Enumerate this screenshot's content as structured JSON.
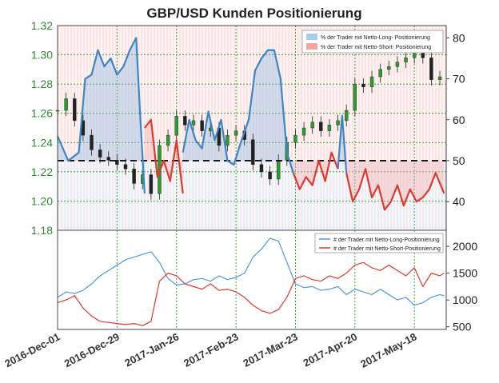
{
  "chart_data": [
    {
      "type": "line",
      "title": "GBP/USD Kunden Positionierung",
      "left_axis": {
        "ticks": [
          1.18,
          1.2,
          1.22,
          1.24,
          1.26,
          1.28,
          1.3,
          1.32
        ],
        "range": [
          1.18,
          1.32
        ],
        "tick_color": "#2e8b2e"
      },
      "right_axis": {
        "ticks": [
          40,
          50,
          60,
          70,
          80
        ],
        "range": [
          33,
          83
        ]
      },
      "reference_line": 50,
      "grid": true,
      "legend_position": "top-right",
      "x_dates": [
        "2016-12-01",
        "2016-12-29",
        "2017-01-26",
        "2017-02-23",
        "2017-03-23",
        "2017-04-20",
        "2017-05-18"
      ],
      "x_labels": [
        "2016-Dec-01",
        "2016-Dec-29",
        "2017-Jan-26",
        "2017-Feb-23",
        "2017-Mar-23",
        "2017-Apr-20",
        "2017-May-18"
      ],
      "x_range": [
        "2016-12-01",
        "2017-06-02"
      ],
      "legend": [
        {
          "label": "% der Trader mit Netto-Long- Positionierung",
          "color": "#a9cdec"
        },
        {
          "label": "% der Trader mit Netto-Short- Positionierung",
          "color": "#f5a3a3"
        }
      ],
      "long_series": {
        "color": "#3d85c6",
        "x": [
          "2016-12-01",
          "2016-12-06",
          "2016-12-11",
          "2016-12-14",
          "2016-12-17",
          "2016-12-20",
          "2016-12-23",
          "2016-12-26",
          "2016-12-29",
          "2017-01-01",
          "2017-01-04",
          "2017-01-07",
          "2017-01-09",
          "2017-01-11"
        ],
        "y": [
          56,
          50,
          52,
          70,
          71,
          77,
          73,
          75,
          71,
          73,
          77,
          80,
          60,
          42
        ]
      },
      "short_series": {
        "color": "#e03a30",
        "x": [
          "2017-01-11",
          "2017-01-14",
          "2017-01-17",
          "2017-01-20",
          "2017-01-23",
          "2017-01-26",
          "2017-01-29"
        ],
        "y": [
          58,
          60,
          46,
          50,
          45,
          55,
          42
        ]
      },
      "long_series_2": {
        "color": "#3d85c6",
        "x": [
          "2017-01-29",
          "2017-02-01",
          "2017-02-04",
          "2017-02-07",
          "2017-02-10",
          "2017-02-13",
          "2017-02-16",
          "2017-02-19",
          "2017-02-22",
          "2017-02-25",
          "2017-03-01",
          "2017-03-04",
          "2017-03-07",
          "2017-03-10",
          "2017-03-13",
          "2017-03-16",
          "2017-03-19",
          "2017-03-22"
        ],
        "y": [
          52,
          60,
          55,
          53,
          62,
          55,
          60,
          50,
          49,
          54,
          60,
          72,
          75,
          77,
          77,
          70,
          52,
          47
        ]
      },
      "short_series_2": {
        "color": "#e03a30",
        "x": [
          "2017-03-22",
          "2017-03-25",
          "2017-03-28",
          "2017-03-31",
          "2017-04-03",
          "2017-04-06",
          "2017-04-09",
          "2017-04-12"
        ],
        "y": [
          47,
          43,
          46,
          44,
          50,
          45,
          52,
          48
        ]
      },
      "long_series_3": {
        "color": "#3d85c6",
        "x": [
          "2017-04-12",
          "2017-04-14",
          "2017-04-16"
        ],
        "y": [
          48,
          61,
          47
        ]
      },
      "short_series_3": {
        "color": "#e03a30",
        "x": [
          "2017-04-16",
          "2017-04-19",
          "2017-04-22",
          "2017-04-25",
          "2017-04-28",
          "2017-05-01",
          "2017-05-04",
          "2017-05-07",
          "2017-05-10",
          "2017-05-13",
          "2017-05-16",
          "2017-05-19",
          "2017-05-22",
          "2017-05-25",
          "2017-05-28",
          "2017-06-01"
        ],
        "y": [
          47,
          40,
          43,
          48,
          41,
          44,
          38,
          40,
          44,
          39,
          43,
          40,
          41,
          43,
          47,
          42
        ]
      },
      "price_candles": {
        "x": [
          "2016-12-01",
          "2016-12-05",
          "2016-12-09",
          "2016-12-13",
          "2016-12-17",
          "2016-12-21",
          "2016-12-25",
          "2016-12-29",
          "2017-01-02",
          "2017-01-06",
          "2017-01-10",
          "2017-01-14",
          "2017-01-18",
          "2017-01-22",
          "2017-01-26",
          "2017-01-30",
          "2017-02-03",
          "2017-02-07",
          "2017-02-11",
          "2017-02-15",
          "2017-02-19",
          "2017-02-23",
          "2017-02-27",
          "2017-03-03",
          "2017-03-07",
          "2017-03-11",
          "2017-03-15",
          "2017-03-19",
          "2017-03-23",
          "2017-03-27",
          "2017-03-31",
          "2017-04-04",
          "2017-04-08",
          "2017-04-12",
          "2017-04-16",
          "2017-04-20",
          "2017-04-24",
          "2017-04-28",
          "2017-05-02",
          "2017-05-06",
          "2017-05-10",
          "2017-05-14",
          "2017-05-18",
          "2017-05-22",
          "2017-05-26",
          "2017-05-30"
        ],
        "close": [
          1.262,
          1.27,
          1.255,
          1.245,
          1.235,
          1.23,
          1.228,
          1.225,
          1.222,
          1.212,
          1.218,
          1.205,
          1.238,
          1.245,
          1.258,
          1.252,
          1.255,
          1.248,
          1.25,
          1.238,
          1.245,
          1.248,
          1.242,
          1.225,
          1.22,
          1.215,
          1.228,
          1.24,
          1.245,
          1.25,
          1.254,
          1.248,
          1.252,
          1.255,
          1.262,
          1.28,
          1.278,
          1.285,
          1.29,
          1.292,
          1.295,
          1.298,
          1.302,
          1.298,
          1.283,
          1.285
        ]
      }
    },
    {
      "type": "line",
      "right_axis": {
        "ticks": [
          500,
          1000,
          1500,
          2000
        ],
        "range": [
          450,
          2300
        ]
      },
      "grid": true,
      "legend_position": "top-right",
      "x_dates": [
        "2016-12-01",
        "2016-12-29",
        "2017-01-26",
        "2017-02-23",
        "2017-03-23",
        "2017-04-20",
        "2017-05-18"
      ],
      "x_range": [
        "2016-12-01",
        "2017-06-02"
      ],
      "series": [
        {
          "name": "# der Trader mit Netto-Long-Positionierung",
          "color": "#4a9be0",
          "x": [
            "2016-12-01",
            "2016-12-05",
            "2016-12-09",
            "2016-12-13",
            "2016-12-17",
            "2016-12-21",
            "2016-12-25",
            "2016-12-29",
            "2017-01-02",
            "2017-01-06",
            "2017-01-10",
            "2017-01-14",
            "2017-01-18",
            "2017-01-22",
            "2017-01-26",
            "2017-01-30",
            "2017-02-03",
            "2017-02-07",
            "2017-02-11",
            "2017-02-15",
            "2017-02-19",
            "2017-02-23",
            "2017-02-27",
            "2017-03-03",
            "2017-03-07",
            "2017-03-11",
            "2017-03-15",
            "2017-03-19",
            "2017-03-23",
            "2017-03-27",
            "2017-03-31",
            "2017-04-04",
            "2017-04-08",
            "2017-04-12",
            "2017-04-16",
            "2017-04-20",
            "2017-04-24",
            "2017-04-28",
            "2017-05-02",
            "2017-05-06",
            "2017-05-10",
            "2017-05-14",
            "2017-05-18",
            "2017-05-22",
            "2017-05-26",
            "2017-05-30",
            "2017-06-01"
          ],
          "y": [
            1050,
            1150,
            1120,
            1180,
            1300,
            1450,
            1550,
            1650,
            1750,
            1800,
            1850,
            1900,
            1700,
            1400,
            1280,
            1300,
            1380,
            1400,
            1350,
            1450,
            1380,
            1420,
            1500,
            1800,
            1950,
            2150,
            2100,
            1700,
            1300,
            1230,
            1250,
            1180,
            1200,
            1250,
            1100,
            1200,
            1150,
            1100,
            1200,
            1100,
            1000,
            1050,
            900,
            950,
            1050,
            1100,
            1080
          ]
        },
        {
          "name": "# der Trader mit Netto-Short-Positionierung",
          "color": "#e03a30",
          "x": [
            "2016-12-01",
            "2016-12-05",
            "2016-12-09",
            "2016-12-13",
            "2016-12-17",
            "2016-12-21",
            "2016-12-25",
            "2016-12-29",
            "2017-01-02",
            "2017-01-06",
            "2017-01-10",
            "2017-01-14",
            "2017-01-18",
            "2017-01-22",
            "2017-01-26",
            "2017-01-30",
            "2017-02-03",
            "2017-02-07",
            "2017-02-11",
            "2017-02-15",
            "2017-02-19",
            "2017-02-23",
            "2017-02-27",
            "2017-03-03",
            "2017-03-07",
            "2017-03-11",
            "2017-03-15",
            "2017-03-19",
            "2017-03-23",
            "2017-03-27",
            "2017-03-31",
            "2017-04-04",
            "2017-04-08",
            "2017-04-12",
            "2017-04-16",
            "2017-04-20",
            "2017-04-24",
            "2017-04-28",
            "2017-05-02",
            "2017-05-06",
            "2017-05-10",
            "2017-05-14",
            "2017-05-18",
            "2017-05-22",
            "2017-05-26",
            "2017-05-30",
            "2017-06-01"
          ],
          "y": [
            950,
            1000,
            1080,
            850,
            700,
            600,
            580,
            560,
            540,
            560,
            520,
            600,
            1350,
            1500,
            1450,
            1300,
            1250,
            1200,
            1300,
            1180,
            1200,
            1150,
            1050,
            900,
            800,
            750,
            820,
            1050,
            1400,
            1450,
            1380,
            1350,
            1450,
            1400,
            1500,
            1650,
            1700,
            1600,
            1550,
            1650,
            1550,
            1450,
            1600,
            1250,
            1500,
            1450,
            1500
          ]
        }
      ]
    }
  ]
}
